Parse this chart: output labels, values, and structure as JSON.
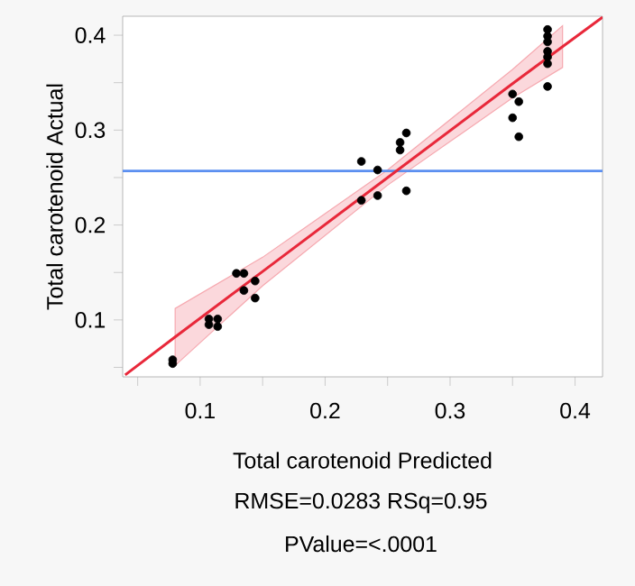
{
  "chart_data": {
    "type": "scatter",
    "xlabel": "Total carotenoid Predicted",
    "ylabel": "Total carotenoid Actual",
    "annotations": [
      "RMSE=0.0283 RSq=0.95",
      "PValue=<.0001"
    ],
    "xlim": [
      0.038,
      0.422
    ],
    "ylim": [
      0.04,
      0.42
    ],
    "xticks": [
      {
        "value": 0.05,
        "label": null
      },
      0.1,
      {
        "value": 0.15,
        "label": null
      },
      0.2,
      {
        "value": 0.25,
        "label": null
      },
      0.3,
      {
        "value": 0.35,
        "label": null
      },
      0.4
    ],
    "yticks": [
      {
        "value": 0.05,
        "label": null
      },
      0.1,
      {
        "value": 0.15,
        "label": null
      },
      0.2,
      {
        "value": 0.25,
        "label": null
      },
      0.3,
      {
        "value": 0.35,
        "label": null
      },
      0.4
    ],
    "marker": "circle",
    "ref_lines": [
      {
        "axis": "y",
        "value": 0.257,
        "color": "#5b8ff0"
      }
    ],
    "series": [
      {
        "color": "#000000",
        "x": [
          0.078,
          0.078,
          0.107,
          0.107,
          0.114,
          0.114,
          0.129,
          0.135,
          0.135,
          0.144,
          0.144,
          0.229,
          0.229,
          0.242,
          0.242,
          0.26,
          0.26,
          0.265,
          0.265,
          0.35,
          0.35,
          0.355,
          0.355,
          0.378,
          0.378,
          0.378,
          0.378,
          0.378,
          0.378,
          0.378
        ],
        "values": [
          0.058,
          0.054,
          0.101,
          0.095,
          0.101,
          0.093,
          0.149,
          0.149,
          0.131,
          0.141,
          0.123,
          0.267,
          0.226,
          0.258,
          0.231,
          0.279,
          0.287,
          0.297,
          0.236,
          0.338,
          0.313,
          0.33,
          0.293,
          0.406,
          0.399,
          0.393,
          0.383,
          0.377,
          0.37,
          0.346
        ]
      },
      {
        "type": "line",
        "color": "#e8283a",
        "marker": "none",
        "x": [
          0.04,
          0.08,
          0.15,
          0.25,
          0.35,
          0.39,
          0.422
        ],
        "values": [
          0.042,
          0.082,
          0.151,
          0.25,
          0.349,
          0.388,
          0.419
        ],
        "lower": [
          null,
          0.052,
          0.136,
          0.242,
          0.334,
          0.366,
          null
        ],
        "upper": [
          null,
          0.112,
          0.166,
          0.258,
          0.364,
          0.41,
          null
        ]
      }
    ]
  }
}
